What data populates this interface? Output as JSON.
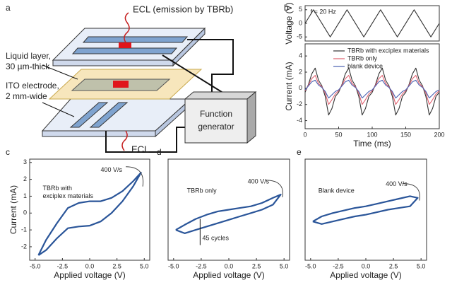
{
  "diagram": {
    "label": "a",
    "ecl_top": "ECL (emission by TBRb)",
    "liquid_layer": [
      "Liquid layer,",
      "30 µm-thick"
    ],
    "ito": [
      "ITO electrode,",
      "2 mm-wide"
    ],
    "generator": [
      "Function",
      "generator"
    ],
    "ecl_bottom": "ECL"
  },
  "chart_data": [
    {
      "type": "line",
      "label": "b",
      "ylabel": "Voltage (V)",
      "annotations": [
        "f = 20 Hz"
      ],
      "x": [
        0,
        12.5,
        37.5,
        62.5,
        87.5,
        112.5,
        137.5,
        162.5,
        187.5,
        200
      ],
      "xlim": [
        0,
        200
      ],
      "ylim": [
        -6.5,
        6.5
      ],
      "yticks": [
        5,
        0,
        -5
      ],
      "series": [
        {
          "color": "#333333",
          "values": [
            0,
            5,
            -5,
            5,
            -5,
            5,
            -5,
            5,
            -5,
            0
          ]
        }
      ]
    },
    {
      "type": "line",
      "xlabel": "Time (ms)",
      "ylabel": "Current (mA)",
      "legend": "upper right",
      "x": [
        0,
        5,
        10,
        15,
        20,
        25,
        30,
        35,
        40,
        45,
        50,
        55,
        60,
        65,
        70,
        75,
        80,
        85,
        90,
        95,
        100,
        105,
        110,
        115,
        120,
        125,
        130,
        135,
        140,
        145,
        150,
        155,
        160,
        165,
        170,
        175,
        180,
        185,
        190,
        195,
        200
      ],
      "xlim": [
        0,
        200
      ],
      "ylim": [
        -5,
        5.5
      ],
      "xticks": [
        0,
        50,
        100,
        150,
        200
      ],
      "yticks": [
        4,
        2,
        0,
        -2,
        -4
      ],
      "series": [
        {
          "name": "TBRb with exciplex materials",
          "color": "#333333",
          "values": [
            -0.5,
            0.5,
            1.8,
            2.5,
            1.0,
            0.3,
            -1.0,
            -3.3,
            -2.5,
            -1.0,
            -0.5,
            0.5,
            1.8,
            2.5,
            1.0,
            0.3,
            -1.0,
            -3.3,
            -2.5,
            -1.0,
            -0.5,
            0.5,
            1.8,
            2.5,
            1.0,
            0.3,
            -1.0,
            -3.3,
            -2.5,
            -1.0,
            -0.5,
            0.5,
            1.8,
            2.5,
            1.0,
            0.3,
            -1.0,
            -3.3,
            -2.5,
            -1.0,
            -0.5
          ]
        },
        {
          "name": "TBRb only",
          "color": "#e0606e",
          "values": [
            -0.3,
            0.4,
            1.2,
            1.6,
            0.6,
            0.2,
            -0.6,
            -2.0,
            -1.4,
            -0.7,
            -0.3,
            0.4,
            1.2,
            1.6,
            0.6,
            0.2,
            -0.6,
            -2.0,
            -1.4,
            -0.7,
            -0.3,
            0.4,
            1.2,
            1.6,
            0.6,
            0.2,
            -0.6,
            -2.0,
            -1.4,
            -0.7,
            -0.3,
            0.4,
            1.2,
            1.6,
            0.6,
            0.2,
            -0.6,
            -2.0,
            -1.4,
            -0.7,
            -0.3
          ]
        },
        {
          "name": "blank device",
          "color": "#4a5fb0",
          "values": [
            -0.2,
            0.3,
            0.8,
            1.0,
            0.4,
            0.1,
            -0.4,
            -1.2,
            -0.8,
            -0.4,
            -0.2,
            0.3,
            0.8,
            1.0,
            0.4,
            0.1,
            -0.4,
            -1.2,
            -0.8,
            -0.4,
            -0.2,
            0.3,
            0.8,
            1.0,
            0.4,
            0.1,
            -0.4,
            -1.2,
            -0.8,
            -0.4,
            -0.2,
            0.3,
            0.8,
            1.0,
            0.4,
            0.1,
            -0.4,
            -1.2,
            -0.8,
            -0.4,
            -0.2
          ]
        }
      ]
    },
    {
      "type": "line",
      "label": "c",
      "xlabel": "Applied voltage (V)",
      "ylabel": "Current (mA)",
      "annotations": [
        "400 V/s",
        "TBRb with",
        "exciplex materials"
      ],
      "x": [
        -4.7,
        -4,
        -3,
        -2,
        -1,
        0,
        1,
        2,
        3,
        4,
        4.7,
        4,
        3,
        2,
        1,
        0,
        -1,
        -2,
        -3,
        -4,
        -4.7
      ],
      "xlim": [
        -5.5,
        5.5
      ],
      "ylim": [
        -2.8,
        3.2
      ],
      "xticks": [
        {
          "value": -5,
          "label": "-5.0"
        },
        {
          "value": -2.5,
          "label": "-2.5"
        },
        {
          "value": 0,
          "label": "0.0"
        },
        {
          "value": 2.5,
          "label": "2.5"
        },
        {
          "value": 5,
          "label": "5.0"
        }
      ],
      "yticks": [
        3,
        2,
        1,
        0,
        -1,
        -2
      ],
      "series": [
        {
          "color": "#2a5599",
          "values": [
            -2.5,
            -1.6,
            -0.6,
            0.3,
            0.6,
            0.7,
            0.7,
            0.9,
            1.3,
            1.9,
            2.4,
            1.6,
            0.7,
            0,
            -0.5,
            -0.75,
            -0.8,
            -0.9,
            -1.5,
            -2.2,
            -2.5
          ]
        }
      ]
    },
    {
      "type": "line",
      "label": "d",
      "xlabel": "Applied voltage (V)",
      "annotations": [
        "TBRb only",
        "400 V/s",
        "45 cycles"
      ],
      "x": [
        -4.8,
        -4,
        -3,
        -2,
        -1,
        0,
        1,
        2,
        3,
        4,
        4.7,
        4,
        3,
        2,
        1,
        0,
        -1,
        -2,
        -3,
        -4,
        -4.8
      ],
      "xlim": [
        -5.5,
        5.5
      ],
      "ylim": [
        -2.8,
        3.2
      ],
      "xticks": [
        {
          "value": -5,
          "label": "-5.0"
        },
        {
          "value": -2.5,
          "label": "-2.5"
        },
        {
          "value": 0,
          "label": "0.0"
        },
        {
          "value": 2.5,
          "label": "2.5"
        },
        {
          "value": 5,
          "label": "5.0"
        }
      ],
      "series": [
        {
          "color": "#2a5599",
          "values": [
            -1.0,
            -0.7,
            -0.35,
            -0.1,
            0.1,
            0.2,
            0.3,
            0.4,
            0.6,
            0.9,
            1.1,
            0.5,
            0.2,
            0,
            -0.2,
            -0.4,
            -0.6,
            -0.8,
            -1.0,
            -1.2,
            -1.0
          ]
        }
      ]
    },
    {
      "type": "line",
      "label": "e",
      "xlabel": "Applied voltage (V)",
      "annotations": [
        "Blank device",
        "400 V/s"
      ],
      "x": [
        -4.8,
        -4,
        -3,
        -2,
        -1,
        0,
        1,
        2,
        3,
        4,
        4.7,
        4,
        3,
        2,
        1,
        0,
        -1,
        -2,
        -3,
        -4,
        -4.8
      ],
      "xlim": [
        -5.5,
        5.5
      ],
      "ylim": [
        -2.8,
        3.2
      ],
      "xticks": [
        {
          "value": -5,
          "label": "-5.0"
        },
        {
          "value": -2.5,
          "label": "-2.5"
        },
        {
          "value": 0,
          "label": "0.0"
        },
        {
          "value": 2.5,
          "label": "2.5"
        },
        {
          "value": 5,
          "label": "5.0"
        }
      ],
      "series": [
        {
          "color": "#2a5599",
          "values": [
            -0.5,
            -0.2,
            0,
            0.15,
            0.3,
            0.4,
            0.55,
            0.7,
            0.85,
            1.0,
            0.9,
            0.4,
            0.3,
            0.2,
            0.05,
            -0.1,
            -0.2,
            -0.35,
            -0.5,
            -0.65,
            -0.5
          ]
        }
      ]
    }
  ]
}
